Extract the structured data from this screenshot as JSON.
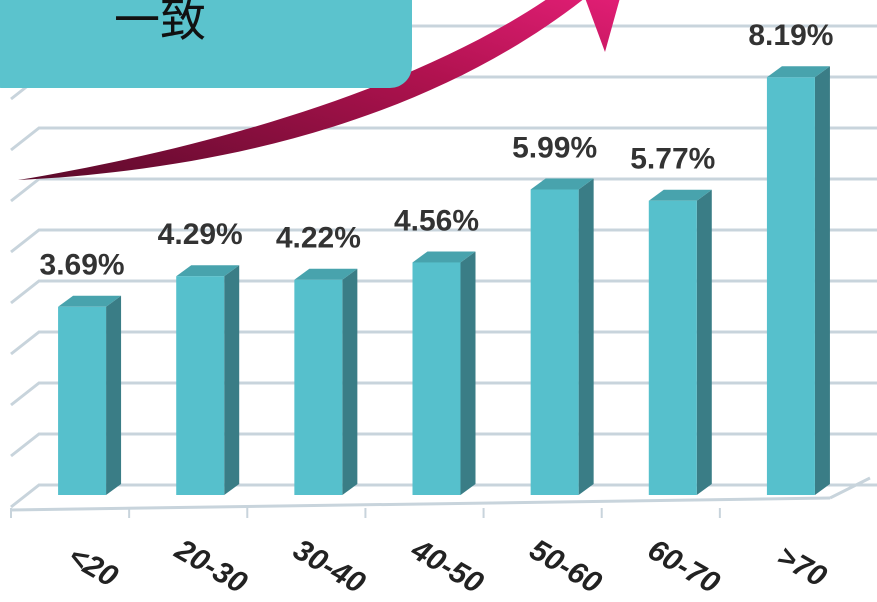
{
  "chart_data": {
    "type": "bar3d",
    "annotation": "一致",
    "categories": [
      "<20",
      "20-30",
      "30-40",
      "40-50",
      "50-60",
      "60-70",
      ">70"
    ],
    "values": [
      3.69,
      4.29,
      4.22,
      4.56,
      5.99,
      5.77,
      8.19
    ],
    "value_labels": [
      "3.69%",
      "4.29%",
      "4.22%",
      "4.56%",
      "5.99%",
      "5.77%",
      "8.19%"
    ],
    "color": "#56c0cc",
    "ylim": [
      0,
      9.5
    ],
    "yticks": [
      0,
      1,
      2,
      3,
      4,
      5,
      6,
      7,
      8,
      9
    ],
    "grid": true
  }
}
